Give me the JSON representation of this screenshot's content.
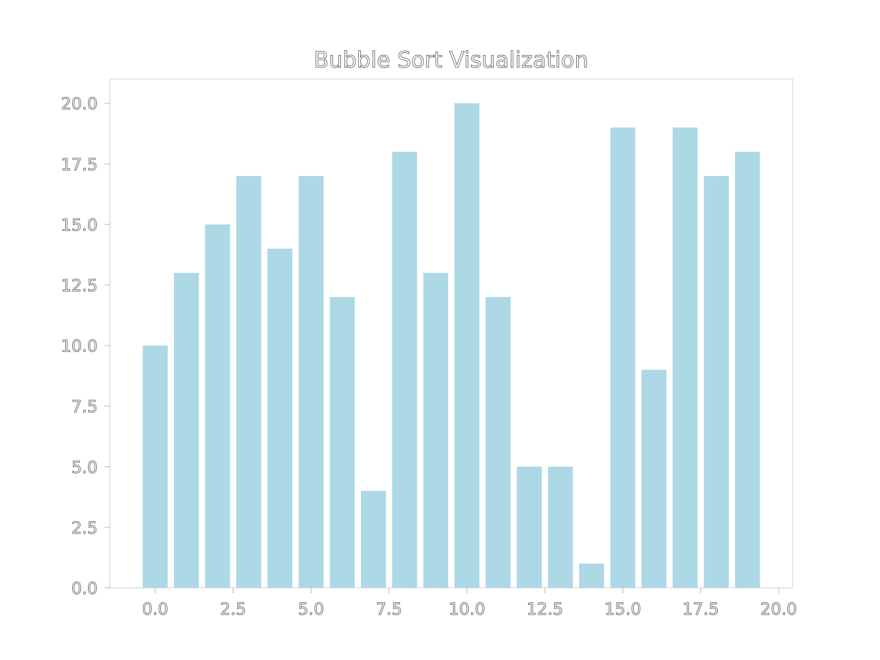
{
  "chart_data": {
    "type": "bar",
    "title": "Bubble Sort Visualization",
    "xlabel": "",
    "ylabel": "",
    "x": [
      0,
      1,
      2,
      3,
      4,
      5,
      6,
      7,
      8,
      9,
      10,
      11,
      12,
      13,
      14,
      15,
      16,
      17,
      18,
      19
    ],
    "values": [
      10,
      13,
      15,
      17,
      14,
      17,
      12,
      4,
      18,
      13,
      20,
      12,
      5,
      5,
      1,
      19,
      9,
      19,
      17,
      18
    ],
    "xlim": [
      -1.45,
      20.45
    ],
    "ylim": [
      0,
      21
    ],
    "x_ticks": [
      0,
      2.5,
      5,
      7.5,
      10,
      12.5,
      15,
      17.5,
      20
    ],
    "x_tick_labels": [
      "0.0",
      "2.5",
      "5.0",
      "7.5",
      "10.0",
      "12.5",
      "15.0",
      "17.5",
      "20.0"
    ],
    "y_ticks": [
      0,
      2.5,
      5,
      7.5,
      10,
      12.5,
      15,
      17.5,
      20
    ],
    "y_tick_labels": [
      "0.0",
      "2.5",
      "5.0",
      "7.5",
      "10.0",
      "12.5",
      "15.0",
      "17.5",
      "20.0"
    ],
    "bar_width": 0.8,
    "bar_color": "#add8e6",
    "grid": false,
    "legend": "none"
  }
}
